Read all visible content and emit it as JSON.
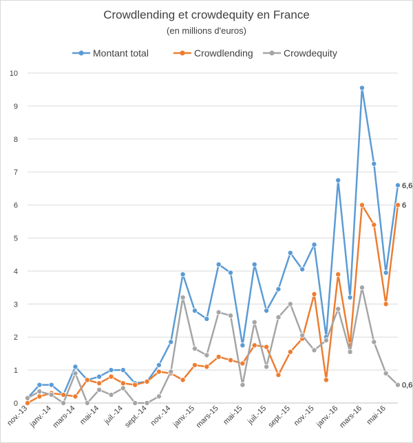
{
  "chart_data": {
    "type": "line",
    "title": "Crowdlending et crowdequity en France",
    "subtitle": "(en millions d'euros)",
    "xlabel": "",
    "ylabel": "",
    "ylim": [
      0,
      10
    ],
    "yticks": [
      "0",
      "1",
      "2",
      "3",
      "4",
      "5",
      "6",
      "7",
      "8",
      "9",
      "10"
    ],
    "grid": "horizontal",
    "legend_position": "top",
    "x_tick_labels": [
      "nov.-13",
      "janv.-14",
      "mars-14",
      "mai-14",
      "juil.-14",
      "sept.-14",
      "nov.-14",
      "janv.-15",
      "mars-15",
      "mai-15",
      "juil.-15",
      "sept.-15",
      "nov.-15",
      "janv.-16",
      "mars-16",
      "mai-16"
    ],
    "point_count": 32,
    "series": [
      {
        "name": "Montant total",
        "color": "#5b9bd5",
        "values": [
          0.15,
          0.55,
          0.55,
          0.25,
          1.1,
          0.7,
          0.8,
          1.0,
          1.0,
          0.6,
          0.65,
          1.15,
          1.85,
          3.9,
          2.8,
          2.55,
          4.2,
          3.95,
          1.75,
          4.2,
          2.8,
          3.45,
          4.55,
          4.05,
          4.8,
          2.0,
          6.75,
          3.2,
          9.55,
          7.25,
          3.95,
          6.6
        ],
        "end_label": "6,6"
      },
      {
        "name": "Crowdlending",
        "color": "#ed7d31",
        "values": [
          0.0,
          0.2,
          0.3,
          0.25,
          0.2,
          0.7,
          0.6,
          0.8,
          0.6,
          0.55,
          0.65,
          0.95,
          0.9,
          0.7,
          1.15,
          1.1,
          1.4,
          1.3,
          1.2,
          1.75,
          1.7,
          0.85,
          1.55,
          1.95,
          3.3,
          0.7,
          3.9,
          1.75,
          6.0,
          5.4,
          3.0,
          6.0
        ],
        "end_label": "6"
      },
      {
        "name": "Crowdequity",
        "color": "#a5a5a5",
        "values": [
          0.15,
          0.35,
          0.25,
          0.0,
          0.9,
          0.0,
          0.4,
          0.25,
          0.45,
          0.0,
          0.0,
          0.2,
          0.95,
          3.2,
          1.65,
          1.45,
          2.75,
          2.65,
          0.55,
          2.45,
          1.1,
          2.6,
          3.0,
          2.05,
          1.6,
          1.9,
          2.85,
          1.55,
          3.5,
          1.85,
          0.9,
          0.55
        ],
        "end_label": "0,6"
      }
    ]
  }
}
